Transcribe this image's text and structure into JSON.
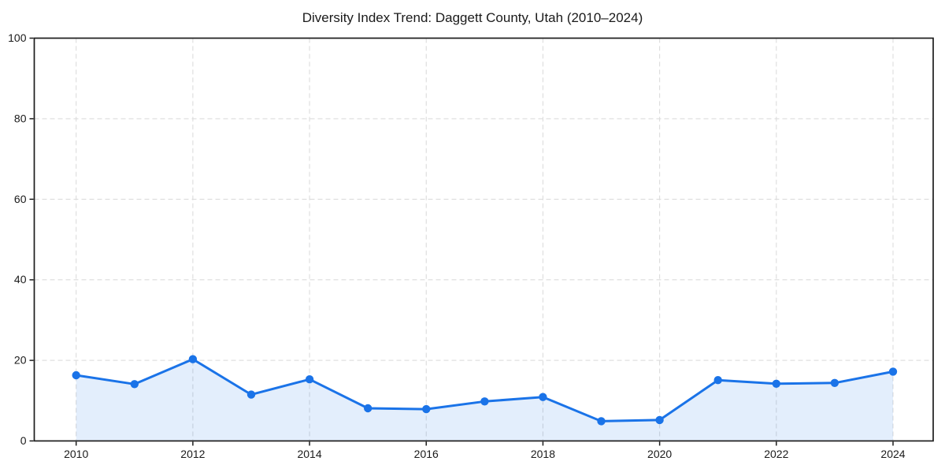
{
  "chart_data": {
    "type": "line",
    "title": "Diversity Index Trend: Daggett County, Utah (2010–2024)",
    "series_name": "Diversity Index",
    "x": [
      2010,
      2011,
      2012,
      2013,
      2014,
      2015,
      2016,
      2017,
      2018,
      2019,
      2020,
      2021,
      2022,
      2023,
      2024
    ],
    "values": [
      16.3,
      14.1,
      20.3,
      11.5,
      15.3,
      8.1,
      7.9,
      9.8,
      10.9,
      4.9,
      5.2,
      15.1,
      14.2,
      14.4,
      17.2
    ],
    "xlabel": "",
    "ylabel": "",
    "xlim": [
      2010,
      2024
    ],
    "ylim": [
      0,
      100
    ],
    "xticks": [
      2010,
      2012,
      2014,
      2016,
      2018,
      2020,
      2022,
      2024
    ],
    "yticks": [
      0,
      20,
      40,
      60,
      80,
      100
    ],
    "grid": true,
    "grid_style": "dashed",
    "legend": false,
    "area_fill": true,
    "markers": true,
    "style": {
      "line_color": "#1a73e8",
      "marker_color": "#1a73e8",
      "fill_color": "#1a73e8",
      "fill_opacity": 0.12,
      "grid_color": "#dcdcdc",
      "axis_color": "#1c1c1c",
      "tick_text_color": "#1a1a1a",
      "background": "#ffffff"
    }
  }
}
